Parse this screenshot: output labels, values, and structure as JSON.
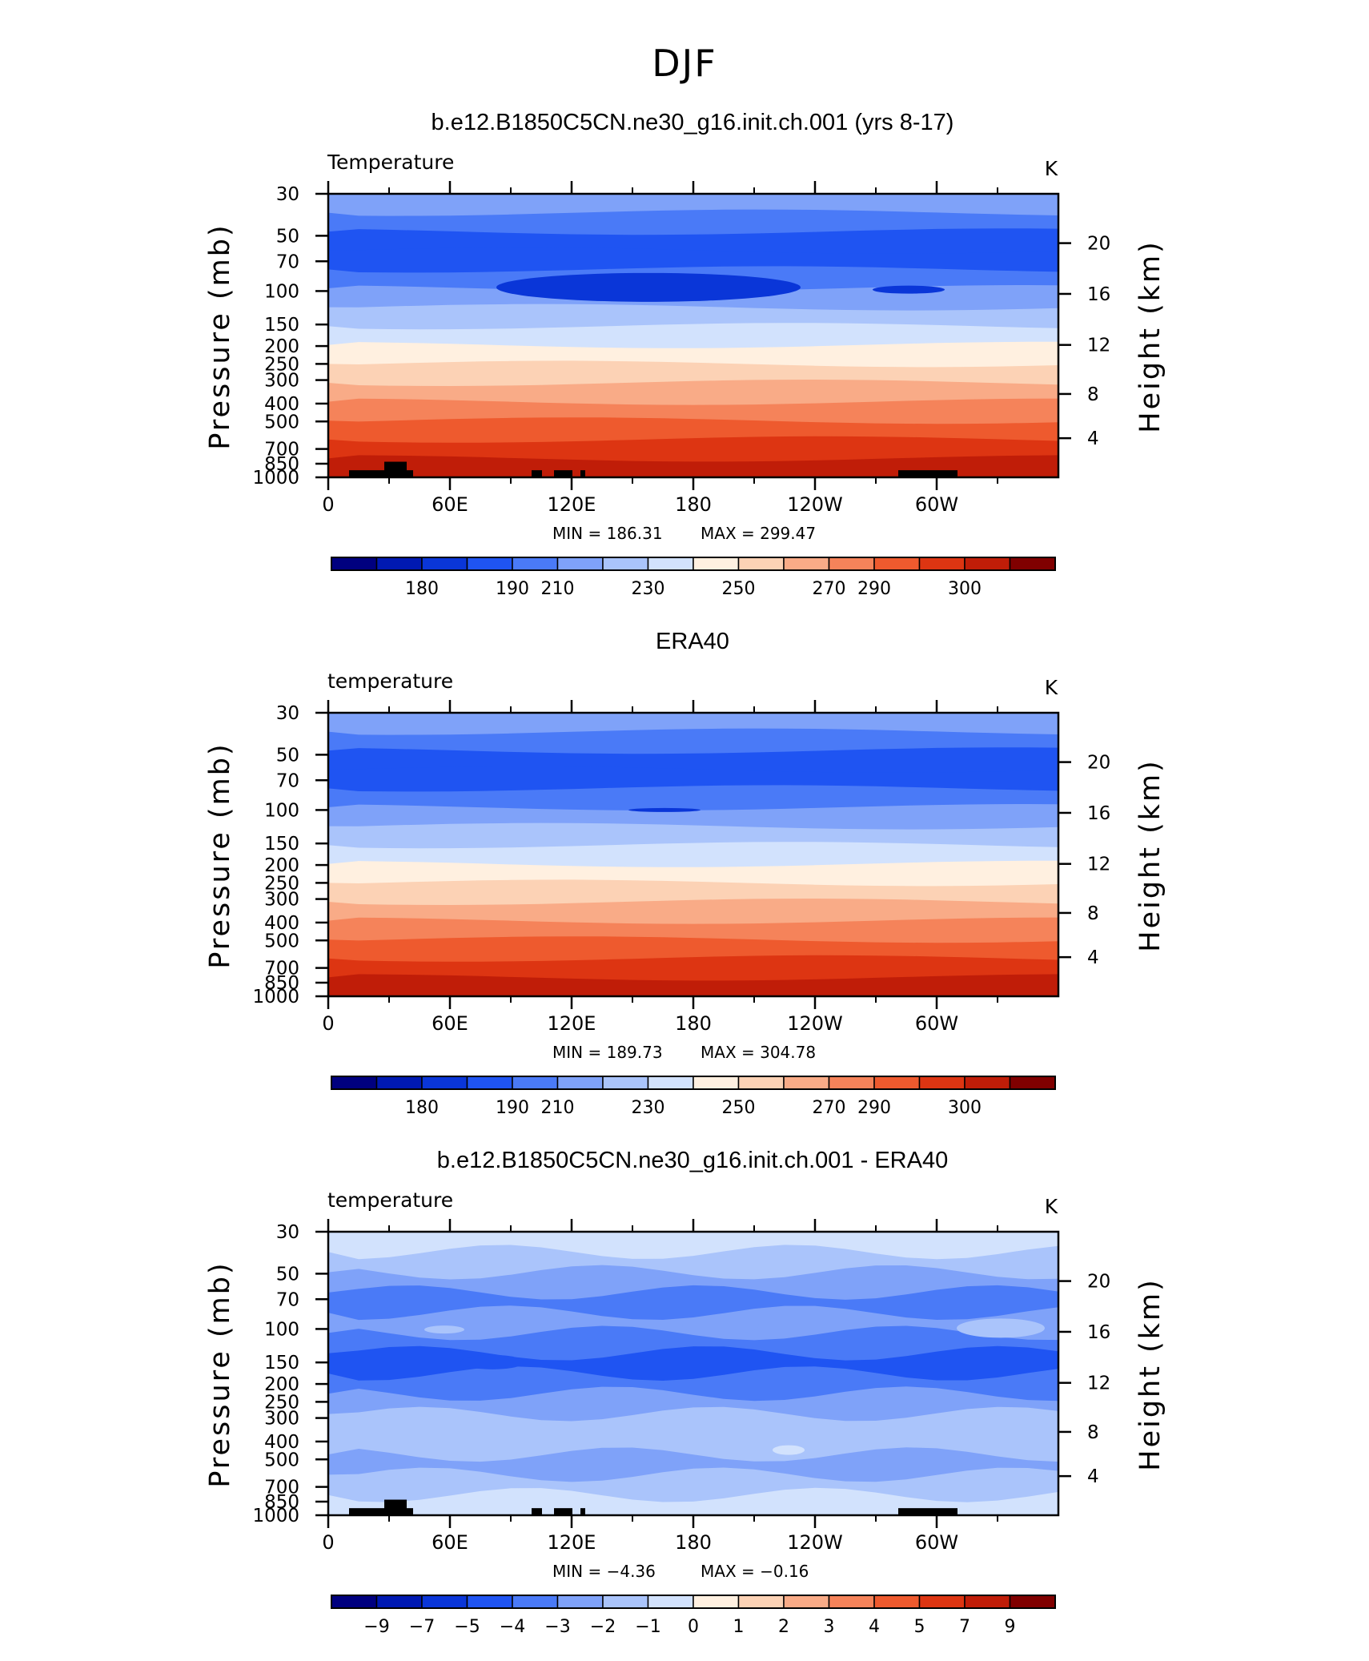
{
  "figure_title": "DJF",
  "chart_data": [
    {
      "type": "heatmap",
      "title": "b.e12.B1850C5CN.ne30_g16.init.ch.001 (yrs 8-17)",
      "variable_label": "Temperature",
      "units": "K",
      "ylabel": "Pressure (mb)",
      "y2label": "Height (km)",
      "x_ticklabels": [
        "0",
        "60E",
        "120E",
        "180",
        "120W",
        "60W"
      ],
      "y_ticklabels": [
        "30",
        "50",
        "70",
        "100",
        "150",
        "200",
        "250",
        "300",
        "400",
        "500",
        "700",
        "850",
        "1000"
      ],
      "y2_ticklabels": [
        "20",
        "16",
        "12",
        "8",
        "4"
      ],
      "min_label": "MIN =  186.31",
      "max_label": "MAX =  299.47",
      "min": 186.31,
      "max": 299.47,
      "colorbar_labels": [
        "180",
        "190",
        "210",
        "230",
        "250",
        "270",
        "290",
        "300"
      ],
      "colorbar_colors": [
        "#00007f",
        "#0019b2",
        "#0a36d8",
        "#1f54f2",
        "#4a7af7",
        "#7fa2f9",
        "#aac4fb",
        "#d2e2fd",
        "#fff0e0",
        "#fcd2b5",
        "#f9ab87",
        "#f5835a",
        "#ee5a2e",
        "#dd3512",
        "#c01d08",
        "#800000"
      ],
      "band_colors_top_to_bottom": [
        "#7fa2f9",
        "#4a7af7",
        "#1f54f2",
        "#1f54f2",
        "#4a7af7",
        "#7fa2f9",
        "#aac4fb",
        "#d2e2fd",
        "#fff0e0",
        "#fcd2b5",
        "#f9ab87",
        "#f5835a",
        "#ee5a2e",
        "#dd3512",
        "#c01d08"
      ],
      "terrain_masked": true
    },
    {
      "type": "heatmap",
      "title": "ERA40",
      "variable_label": "temperature",
      "units": "K",
      "ylabel": "Pressure (mb)",
      "y2label": "Height (km)",
      "x_ticklabels": [
        "0",
        "60E",
        "120E",
        "180",
        "120W",
        "60W"
      ],
      "y_ticklabels": [
        "30",
        "50",
        "70",
        "100",
        "150",
        "200",
        "250",
        "300",
        "400",
        "500",
        "700",
        "850",
        "1000"
      ],
      "y2_ticklabels": [
        "20",
        "16",
        "12",
        "8",
        "4"
      ],
      "min_label": "MIN =  189.73",
      "max_label": "MAX =  304.78",
      "min": 189.73,
      "max": 304.78,
      "colorbar_labels": [
        "180",
        "190",
        "210",
        "230",
        "250",
        "270",
        "290",
        "300"
      ],
      "colorbar_colors": [
        "#00007f",
        "#0019b2",
        "#0a36d8",
        "#1f54f2",
        "#4a7af7",
        "#7fa2f9",
        "#aac4fb",
        "#d2e2fd",
        "#fff0e0",
        "#fcd2b5",
        "#f9ab87",
        "#f5835a",
        "#ee5a2e",
        "#dd3512",
        "#c01d08",
        "#800000"
      ],
      "band_colors_top_to_bottom": [
        "#7fa2f9",
        "#4a7af7",
        "#1f54f2",
        "#1f54f2",
        "#4a7af7",
        "#7fa2f9",
        "#aac4fb",
        "#d2e2fd",
        "#fff0e0",
        "#fcd2b5",
        "#f9ab87",
        "#f5835a",
        "#ee5a2e",
        "#dd3512",
        "#c01d08"
      ],
      "terrain_masked": false
    },
    {
      "type": "heatmap",
      "title": "b.e12.B1850C5CN.ne30_g16.init.ch.001 - ERA40",
      "variable_label": "temperature",
      "units": "K",
      "ylabel": "Pressure (mb)",
      "y2label": "Height (km)",
      "x_ticklabels": [
        "0",
        "60E",
        "120E",
        "180",
        "120W",
        "60W"
      ],
      "y_ticklabels": [
        "30",
        "50",
        "70",
        "100",
        "150",
        "200",
        "250",
        "300",
        "400",
        "500",
        "700",
        "850",
        "1000"
      ],
      "y2_ticklabels": [
        "20",
        "16",
        "12",
        "8",
        "4"
      ],
      "min_label": "MIN =   −4.36",
      "max_label": "MAX =   −0.16",
      "min": -4.36,
      "max": -0.16,
      "colorbar_labels": [
        "−9",
        "−7",
        "−5",
        "−4",
        "−3",
        "−2",
        "−1",
        "0",
        "1",
        "2",
        "3",
        "4",
        "5",
        "7",
        "9"
      ],
      "colorbar_colors": [
        "#00007f",
        "#0019b2",
        "#0a36d8",
        "#1f54f2",
        "#4a7af7",
        "#7fa2f9",
        "#aac4fb",
        "#d2e2fd",
        "#fff0e0",
        "#fcd2b5",
        "#f9ab87",
        "#f5835a",
        "#ee5a2e",
        "#dd3512",
        "#c01d08",
        "#800000"
      ],
      "band_colors_top_to_bottom": [
        "#d2e2fd",
        "#aac4fb",
        "#7fa2f9",
        "#4a7af7",
        "#7fa2f9",
        "#4a7af7",
        "#1f54f2",
        "#4a7af7",
        "#7fa2f9",
        "#aac4fb",
        "#aac4fb",
        "#7fa2f9",
        "#aac4fb",
        "#d2e2fd"
      ],
      "terrain_masked": true
    }
  ]
}
